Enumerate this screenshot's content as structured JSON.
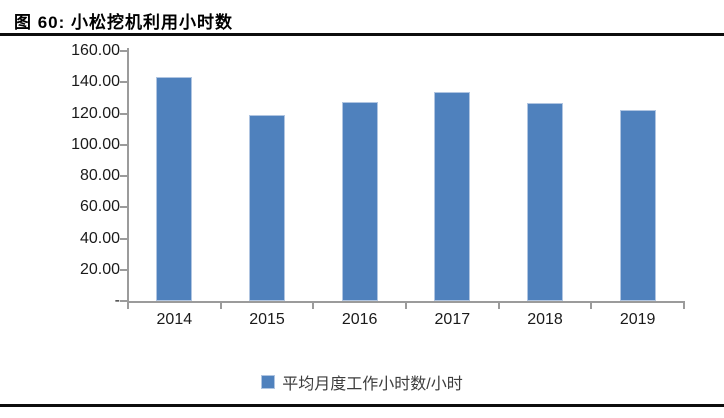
{
  "figure": {
    "title": "图 60:  小松挖机利用小时数"
  },
  "chart_data": {
    "type": "bar",
    "title": "小松挖机利用小时数",
    "categories": [
      "2014",
      "2015",
      "2016",
      "2017",
      "2018",
      "2019"
    ],
    "values": [
      143.5,
      119.0,
      127.5,
      133.5,
      127.0,
      122.0
    ],
    "series_name": "平均月度工作小时数/小时",
    "xlabel": "",
    "ylabel": "",
    "ylim": [
      0,
      160
    ],
    "ytick_step": 20,
    "ytick_labels": [
      "-",
      "20.00",
      "40.00",
      "60.00",
      "80.00",
      "100.00",
      "120.00",
      "140.00",
      "160.00"
    ],
    "zero_tick_label": "-",
    "grid": false,
    "legend_position": "bottom",
    "colors": {
      "bar_fill": "#4F81BD",
      "bar_edge": "#B0C5E1",
      "axis": "#9B9B9B",
      "tick_text": "#1A1A1A",
      "legend_text": "#3D3D3D",
      "rule": "#0D0D0D"
    }
  }
}
